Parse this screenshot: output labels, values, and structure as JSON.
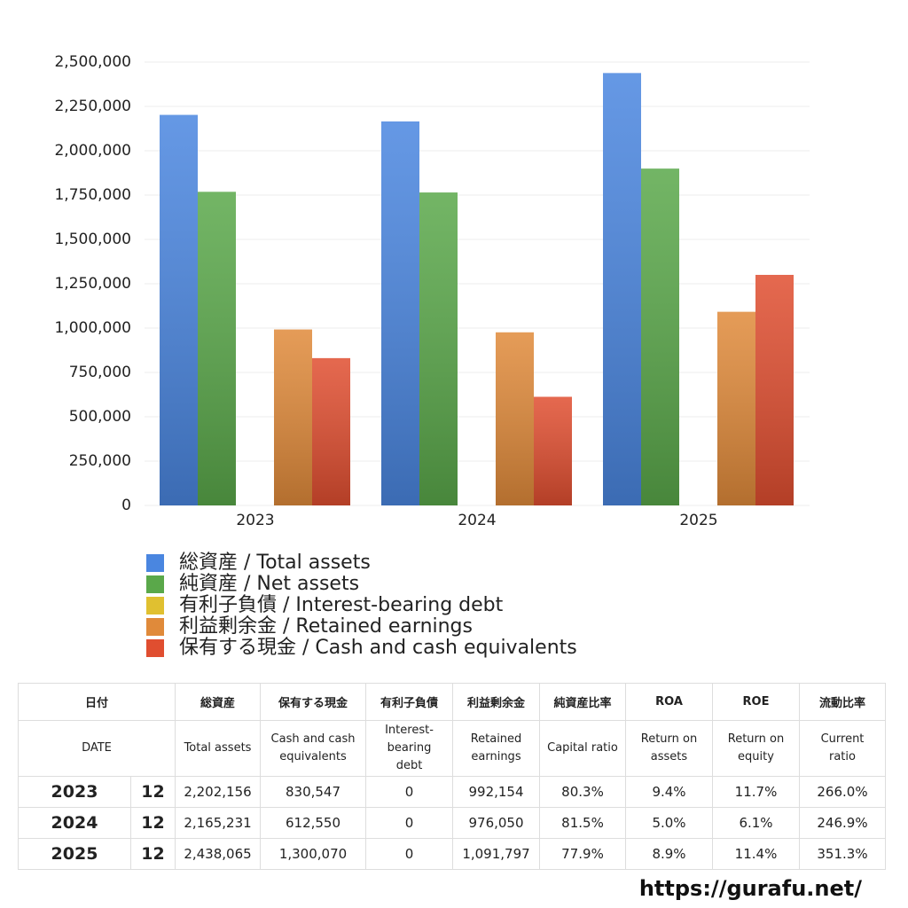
{
  "chart_data": {
    "type": "bar",
    "categories": [
      "2023",
      "2024",
      "2025"
    ],
    "series": [
      {
        "name": "総資産 / Total assets",
        "color": "#4a86e0",
        "values": [
          2202156,
          2165231,
          2438065
        ]
      },
      {
        "name": "純資産 / Net assets",
        "color": "#5aa84a",
        "values": [
          1768331,
          1764663,
          1899253
        ]
      },
      {
        "name": "有利子負債 / Interest-bearing debt",
        "color": "#e0c030",
        "values": [
          0,
          0,
          0
        ]
      },
      {
        "name": "利益剰余金 / Retained earnings",
        "color": "#e08a3a",
        "values": [
          992154,
          976050,
          1091797
        ]
      },
      {
        "name": "保有する現金 / Cash and cash equivalents",
        "color": "#e04e30",
        "values": [
          830547,
          612550,
          1300070
        ]
      }
    ],
    "ylim": [
      0,
      2500000
    ],
    "yticks": [
      0,
      {
        "value": 250000,
        "label": "250,000"
      },
      {
        "value": 500000,
        "label": "500,000"
      },
      {
        "value": 750000,
        "label": "750,000"
      },
      {
        "value": 1000000,
        "label": "1,000,000"
      },
      {
        "value": 1250000,
        "label": "1,250,000"
      },
      {
        "value": 1500000,
        "label": "1,500,000"
      },
      {
        "value": 1750000,
        "label": "1,750,000"
      },
      {
        "value": 2000000,
        "label": "2,000,000"
      },
      {
        "value": 2250000,
        "label": "2,250,000"
      },
      {
        "value": 2500000,
        "label": "2,500,000"
      }
    ],
    "grid": true
  },
  "table": {
    "header_ja": [
      "日付",
      "総資産",
      "保有する現金",
      "有利子負債",
      "利益剰余金",
      "純資産比率",
      "ROA",
      "ROE",
      "流動比率"
    ],
    "header_en": [
      "DATE",
      "Total assets",
      "Cash and cash\nequivalents",
      "Interest-\nbearing\ndebt",
      "Retained\nearnings",
      "Capital ratio",
      "Return on\nassets",
      "Return on\nequity",
      "Current\nratio"
    ],
    "rows": [
      [
        "2023",
        "12",
        "2,202,156",
        "830,547",
        "0",
        "992,154",
        "80.3%",
        "9.4%",
        "11.7%",
        "266.0%"
      ],
      [
        "2024",
        "12",
        "2,165,231",
        "612,550",
        "0",
        "976,050",
        "81.5%",
        "5.0%",
        "6.1%",
        "246.9%"
      ],
      [
        "2025",
        "12",
        "2,438,065",
        "1,300,070",
        "0",
        "1,091,797",
        "77.9%",
        "8.9%",
        "11.4%",
        "351.3%"
      ]
    ]
  },
  "footer": "https://gurafu.net/"
}
